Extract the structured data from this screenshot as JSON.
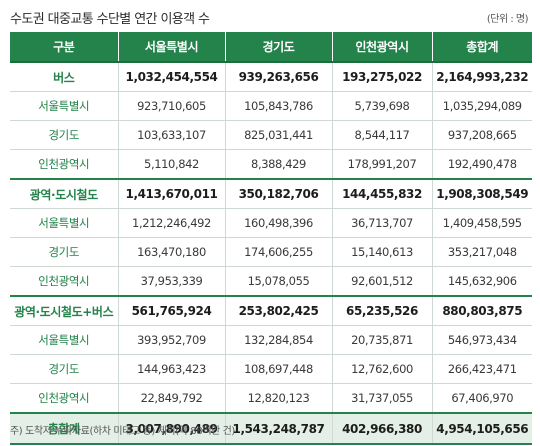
{
  "title": "수도권 대중교통 수단별 연간 이용객 수",
  "unit": "(단위 : 명)",
  "colors": {
    "header": "#23834a",
    "label": "#23834a",
    "total_bg": "#e3efe7"
  },
  "table": {
    "headers": [
      "구분",
      "서울특별시",
      "경기도",
      "인천광역시",
      "총합계"
    ],
    "rows": [
      {
        "label": "버스",
        "values": [
          "1,032,454,554",
          "939,263,656",
          "193,275,022",
          "2,164,993,232"
        ]
      },
      {
        "label": "서울특별시",
        "values": [
          "923,710,605",
          "105,843,786",
          "5,739,698",
          "1,035,294,089"
        ]
      },
      {
        "label": "경기도",
        "values": [
          "103,633,107",
          "825,031,441",
          "8,544,117",
          "937,208,665"
        ]
      },
      {
        "label": "인천광역시",
        "values": [
          "5,110,842",
          "8,388,429",
          "178,991,207",
          "192,490,478"
        ]
      },
      {
        "label": "광역·도시철도",
        "values": [
          "1,413,670,011",
          "350,182,706",
          "144,455,832",
          "1,908,308,549"
        ]
      },
      {
        "label": "서울특별시",
        "values": [
          "1,212,246,492",
          "160,498,396",
          "36,713,707",
          "1,409,458,595"
        ]
      },
      {
        "label": "경기도",
        "values": [
          "163,470,180",
          "174,606,255",
          "15,140,613",
          "353,217,048"
        ]
      },
      {
        "label": "인천광역시",
        "values": [
          "37,953,339",
          "15,078,055",
          "92,601,512",
          "145,632,906"
        ]
      },
      {
        "label": "광역·도시철도+버스",
        "values": [
          "561,765,924",
          "253,802,425",
          "65,235,526",
          "880,803,875"
        ]
      },
      {
        "label": "서울특별시",
        "values": [
          "393,952,709",
          "132,284,854",
          "20,735,871",
          "546,973,434"
        ]
      },
      {
        "label": "경기도",
        "values": [
          "144,963,423",
          "108,697,448",
          "12,762,600",
          "266,423,471"
        ]
      },
      {
        "label": "인천광역시",
        "values": [
          "22,849,792",
          "12,820,123",
          "31,737,055",
          "67,406,970"
        ]
      },
      {
        "label": "총합계",
        "values": [
          "3,007,890,489",
          "1,543,248,787",
          "402,966,380",
          "4,954,105,656"
        ]
      }
    ]
  },
  "note": "주) 도착지 누락자료(하차 미태그 등) 제외(약 88백만 건)"
}
